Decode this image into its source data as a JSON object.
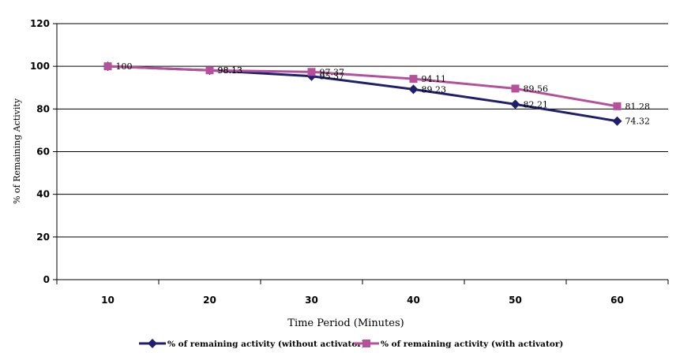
{
  "chart_data": {
    "type": "line",
    "xlabel": "Time Period (Minutes)",
    "ylabel": "% of Remaining Activity",
    "categories": [
      "10",
      "20",
      "30",
      "40",
      "50",
      "60"
    ],
    "ylim": [
      0,
      120
    ],
    "yticks": [
      "0",
      "20",
      "40",
      "60",
      "80",
      "100",
      "120"
    ],
    "grid": true,
    "legend_position": "bottom",
    "series": [
      {
        "name": "% of remaining activity (without activator)",
        "values": [
          100,
          98.13,
          95.37,
          89.23,
          82.21,
          74.32
        ],
        "labels": [
          "",
          "98.13",
          "95.37",
          "89.23",
          "82.21",
          "74.32"
        ],
        "color": "#1f1f6e",
        "marker": "diamond"
      },
      {
        "name": "% of remaining activity (with activator)",
        "values": [
          100,
          98.13,
          97.37,
          94.11,
          89.56,
          81.28
        ],
        "labels": [
          "100",
          "98.13",
          "97.37",
          "94.11",
          "89.56",
          "81.28"
        ],
        "color": "#b5509b",
        "marker": "square"
      }
    ]
  }
}
